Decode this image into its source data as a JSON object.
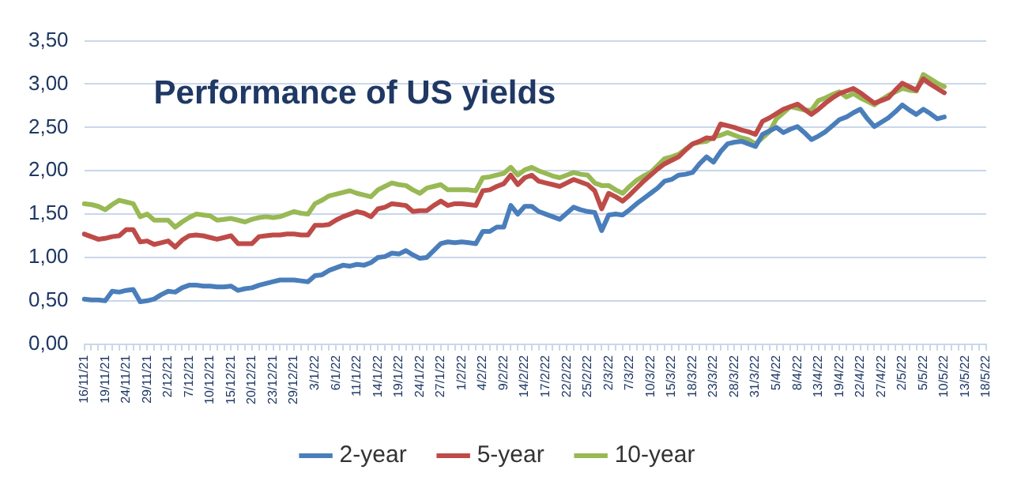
{
  "chart_data": {
    "type": "line",
    "title": "Performance of US yields",
    "categories": [
      "16/11/21",
      null,
      null,
      "19/11/21",
      null,
      null,
      "24/11/21",
      null,
      null,
      "29/11/21",
      null,
      null,
      "2/12/21",
      null,
      null,
      "7/12/21",
      null,
      null,
      "10/12/21",
      null,
      null,
      "15/12/21",
      null,
      null,
      "20/12/21",
      null,
      null,
      "23/12/21",
      null,
      null,
      "29/12/21",
      null,
      null,
      "3/1/22",
      null,
      null,
      "6/1/22",
      null,
      null,
      "11/1/22",
      null,
      null,
      "14/1/22",
      null,
      null,
      "19/1/22",
      null,
      null,
      "24/1/22",
      null,
      null,
      "27/1/22",
      null,
      null,
      "1/2/22",
      null,
      null,
      "4/2/22",
      null,
      null,
      "9/2/22",
      null,
      null,
      "14/2/22",
      null,
      null,
      "17/2/22",
      null,
      null,
      "22/2/22",
      null,
      null,
      "25/2/22",
      null,
      null,
      "2/3/22",
      null,
      null,
      "7/3/22",
      null,
      null,
      "10/3/22",
      null,
      null,
      "15/3/22",
      null,
      null,
      "18/3/22",
      null,
      null,
      "23/3/22",
      null,
      null,
      "28/3/22",
      null,
      null,
      "31/3/22",
      null,
      null,
      "5/4/22",
      null,
      null,
      "8/4/22",
      null,
      null,
      "13/4/22",
      null,
      null,
      "19/4/22",
      null,
      null,
      "22/4/22",
      null,
      null,
      "27/4/22",
      null,
      null,
      "2/5/22",
      null,
      null,
      "5/5/22",
      null,
      null,
      "10/5/22",
      null,
      null,
      "13/5/22",
      null,
      null,
      "18/5/22"
    ],
    "series": [
      {
        "name": "2-year",
        "color": "#4a7ebb",
        "values": [
          0.52,
          0.51,
          0.51,
          0.5,
          0.61,
          0.6,
          0.62,
          0.63,
          0.49,
          0.5,
          0.52,
          0.57,
          0.61,
          0.6,
          0.65,
          0.68,
          0.68,
          0.67,
          0.67,
          0.66,
          0.66,
          0.67,
          0.62,
          0.64,
          0.65,
          0.68,
          0.7,
          0.72,
          0.74,
          0.74,
          0.74,
          0.73,
          0.72,
          0.79,
          0.8,
          0.85,
          0.88,
          0.91,
          0.9,
          0.92,
          0.91,
          0.94,
          1.0,
          1.01,
          1.05,
          1.04,
          1.08,
          1.03,
          0.99,
          1.0,
          1.08,
          1.16,
          1.18,
          1.17,
          1.18,
          1.17,
          1.16,
          1.3,
          1.3,
          1.35,
          1.35,
          1.6,
          1.5,
          1.59,
          1.59,
          1.53,
          1.5,
          1.47,
          1.44,
          1.51,
          1.58,
          1.55,
          1.53,
          1.52,
          1.31,
          1.49,
          1.5,
          1.49,
          1.55,
          1.62,
          1.68,
          1.74,
          1.8,
          1.88,
          1.9,
          1.95,
          1.96,
          1.98,
          2.08,
          2.16,
          2.1,
          2.22,
          2.31,
          2.33,
          2.34,
          2.31,
          2.28,
          2.42,
          2.46,
          2.5,
          2.44,
          2.48,
          2.51,
          2.44,
          2.36,
          2.4,
          2.45,
          2.52,
          2.59,
          2.62,
          2.67,
          2.71,
          2.6,
          2.51,
          2.56,
          2.61,
          2.68,
          2.76,
          2.7,
          2.65,
          2.71,
          2.66,
          2.6,
          2.62,
          null,
          null,
          null,
          null,
          null,
          null
        ]
      },
      {
        "name": "5-year",
        "color": "#be4b48",
        "values": [
          1.27,
          1.24,
          1.21,
          1.22,
          1.24,
          1.25,
          1.32,
          1.32,
          1.18,
          1.19,
          1.15,
          1.17,
          1.19,
          1.12,
          1.2,
          1.25,
          1.26,
          1.25,
          1.23,
          1.21,
          1.23,
          1.25,
          1.16,
          1.16,
          1.16,
          1.24,
          1.25,
          1.26,
          1.26,
          1.27,
          1.27,
          1.26,
          1.26,
          1.37,
          1.37,
          1.38,
          1.43,
          1.47,
          1.5,
          1.53,
          1.51,
          1.47,
          1.56,
          1.58,
          1.62,
          1.61,
          1.6,
          1.53,
          1.54,
          1.54,
          1.6,
          1.65,
          1.6,
          1.62,
          1.62,
          1.61,
          1.6,
          1.77,
          1.78,
          1.82,
          1.85,
          1.95,
          1.84,
          1.92,
          1.95,
          1.88,
          1.86,
          1.84,
          1.82,
          1.86,
          1.9,
          1.87,
          1.84,
          1.77,
          1.56,
          1.74,
          1.7,
          1.65,
          1.72,
          1.8,
          1.88,
          1.95,
          2.02,
          2.08,
          2.12,
          2.16,
          2.24,
          2.31,
          2.34,
          2.38,
          2.37,
          2.54,
          2.52,
          2.5,
          2.47,
          2.45,
          2.42,
          2.57,
          2.61,
          2.66,
          2.71,
          2.74,
          2.77,
          2.71,
          2.65,
          2.71,
          2.78,
          2.84,
          2.89,
          2.92,
          2.95,
          2.9,
          2.84,
          2.78,
          2.81,
          2.84,
          2.93,
          3.01,
          2.97,
          2.93,
          3.06,
          3.0,
          2.95,
          2.9,
          null,
          null,
          null,
          null,
          null,
          null
        ]
      },
      {
        "name": "10-year",
        "color": "#98b954",
        "values": [
          1.62,
          1.61,
          1.59,
          1.55,
          1.61,
          1.66,
          1.64,
          1.62,
          1.47,
          1.5,
          1.43,
          1.43,
          1.43,
          1.35,
          1.41,
          1.46,
          1.5,
          1.49,
          1.48,
          1.43,
          1.44,
          1.45,
          1.43,
          1.41,
          1.44,
          1.46,
          1.47,
          1.46,
          1.47,
          1.5,
          1.53,
          1.51,
          1.5,
          1.62,
          1.66,
          1.71,
          1.73,
          1.75,
          1.77,
          1.74,
          1.72,
          1.7,
          1.78,
          1.82,
          1.86,
          1.84,
          1.83,
          1.78,
          1.74,
          1.8,
          1.82,
          1.84,
          1.78,
          1.78,
          1.78,
          1.78,
          1.77,
          1.92,
          1.93,
          1.95,
          1.97,
          2.04,
          1.95,
          2.01,
          2.04,
          2.0,
          1.97,
          1.94,
          1.92,
          1.95,
          1.98,
          1.96,
          1.95,
          1.86,
          1.83,
          1.83,
          1.78,
          1.74,
          1.82,
          1.89,
          1.94,
          1.98,
          2.06,
          2.14,
          2.16,
          2.19,
          2.25,
          2.31,
          2.33,
          2.34,
          2.39,
          2.41,
          2.44,
          2.41,
          2.38,
          2.36,
          2.31,
          2.38,
          2.45,
          2.6,
          2.67,
          2.74,
          2.72,
          2.7,
          2.7,
          2.81,
          2.84,
          2.88,
          2.91,
          2.85,
          2.89,
          2.84,
          2.8,
          2.76,
          2.82,
          2.87,
          2.91,
          2.95,
          2.93,
          2.92,
          3.11,
          3.06,
          3.01,
          2.97,
          null,
          null,
          null,
          null,
          null,
          null
        ]
      }
    ],
    "ylim": [
      0,
      3.5
    ],
    "yticks": [
      {
        "value": 0,
        "label": "0,00"
      },
      {
        "value": 0.5,
        "label": "0,50"
      },
      {
        "value": 1,
        "label": "1,00"
      },
      {
        "value": 1.5,
        "label": "1,50"
      },
      {
        "value": 2,
        "label": "2,00"
      },
      {
        "value": 2.5,
        "label": "2,50"
      },
      {
        "value": 3,
        "label": "3,00"
      },
      {
        "value": 3.5,
        "label": "3,50"
      }
    ],
    "grid": "y",
    "legend": "bottom",
    "marker": "none",
    "line_style": "solid"
  }
}
